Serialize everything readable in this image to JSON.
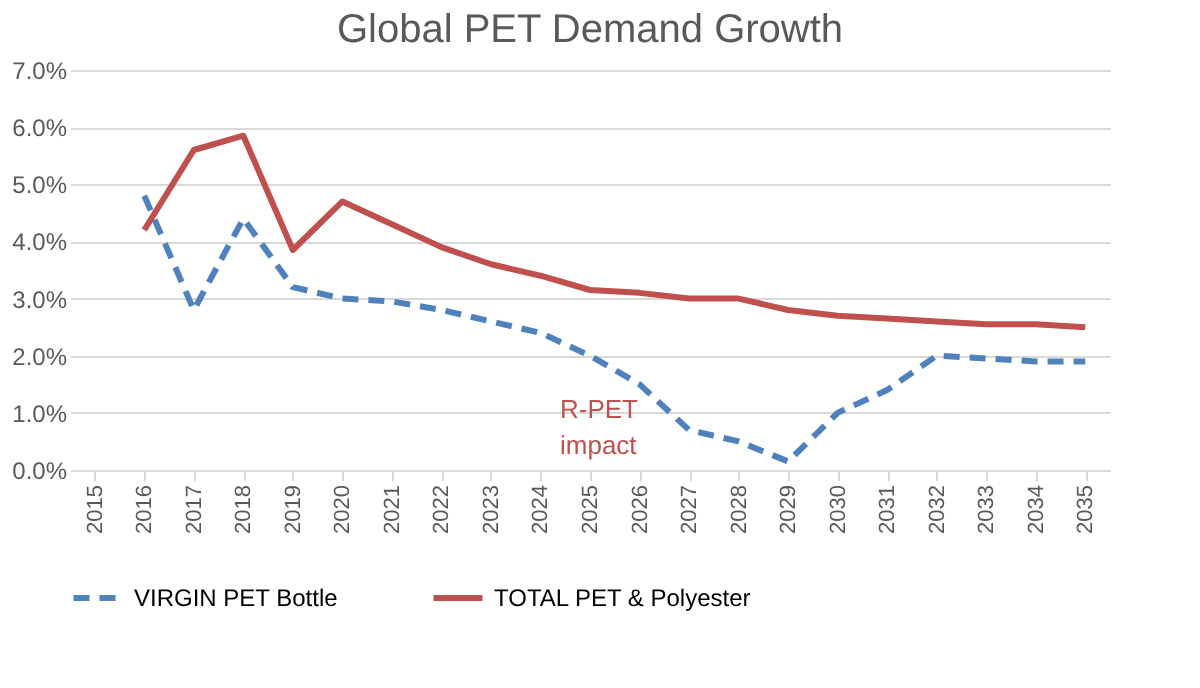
{
  "chart_data": {
    "type": "line",
    "title": "Global PET Demand Growth",
    "categories": [
      "2015",
      "2016",
      "2017",
      "2018",
      "2019",
      "2020",
      "2021",
      "2022",
      "2023",
      "2024",
      "2025",
      "2026",
      "2027",
      "2028",
      "2029",
      "2030",
      "2031",
      "2032",
      "2033",
      "2034",
      "2035"
    ],
    "series": [
      {
        "name": "VIRGIN PET Bottle",
        "color": "#4f81bd",
        "line_style": "dashed",
        "values": [
          null,
          4.8,
          2.8,
          4.4,
          3.2,
          3.0,
          2.95,
          2.8,
          2.6,
          2.4,
          2.0,
          1.5,
          0.7,
          0.5,
          0.15,
          1.0,
          1.4,
          2.0,
          1.95,
          1.9,
          1.9
        ]
      },
      {
        "name": "TOTAL PET & Polyester",
        "color": "#c0504d",
        "line_style": "solid",
        "values": [
          null,
          4.2,
          5.6,
          5.85,
          3.85,
          4.7,
          4.3,
          3.9,
          3.6,
          3.4,
          3.15,
          3.1,
          3.0,
          3.0,
          2.8,
          2.7,
          2.65,
          2.6,
          2.55,
          2.55,
          2.5
        ]
      }
    ],
    "ylim": [
      0,
      7
    ],
    "yticks": [
      {
        "value": 0,
        "label": "0.0%"
      },
      {
        "value": 1,
        "label": "1.0%"
      },
      {
        "value": 2,
        "label": "2.0%"
      },
      {
        "value": 3,
        "label": "3.0%"
      },
      {
        "value": 4,
        "label": "4.0%"
      },
      {
        "value": 5,
        "label": "5.0%"
      },
      {
        "value": 6,
        "label": "6.0%"
      },
      {
        "value": 7,
        "label": "7.0%"
      }
    ],
    "annotations": [
      "R-PET impact"
    ],
    "grid": "y",
    "legend": "bottom",
    "marker": "none"
  }
}
